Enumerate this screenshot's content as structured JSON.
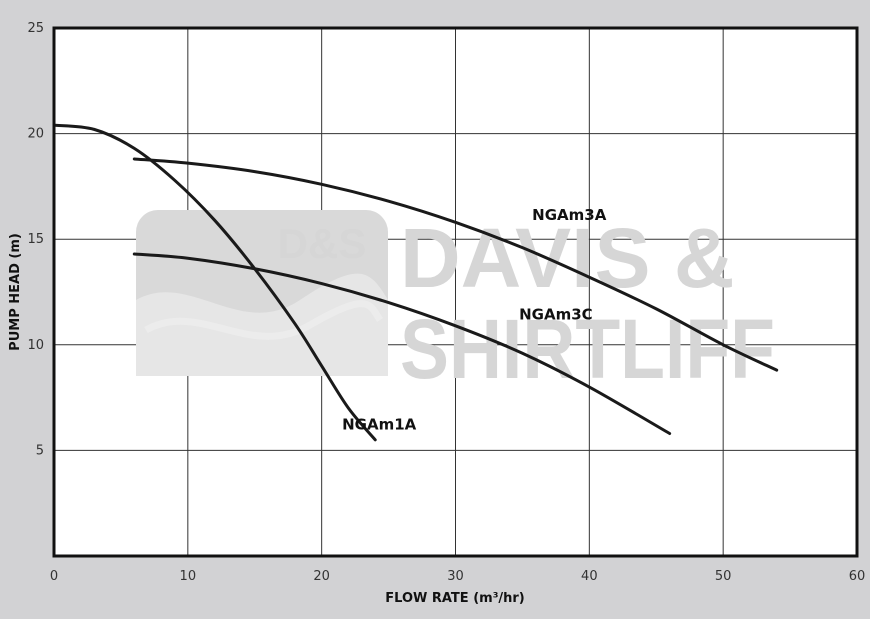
{
  "watermark": {
    "badge": "D&S",
    "line1": "DAVIS &",
    "line2": "SHIRTLIFF"
  },
  "colors": {
    "background": "#d2d2d4",
    "plot_area": "#ffffff",
    "curve": "#1a1a1a",
    "grid": "#333333",
    "watermark": "#d6d6d6"
  },
  "chart_data": {
    "type": "line",
    "title": "",
    "xlabel": "FLOW RATE (m³/hr)",
    "ylabel": "PUMP HEAD (m)",
    "xlim": [
      0,
      60
    ],
    "ylim": [
      0,
      25
    ],
    "xticks": [
      "0",
      "10",
      "20",
      "30",
      "40",
      "50",
      "60"
    ],
    "yticks": [
      "5",
      "10",
      "15",
      "20",
      "25"
    ],
    "grid": true,
    "legend": "inline labels",
    "series": [
      {
        "name": "NGAm1A",
        "x": [
          0,
          3,
          6,
          9,
          12,
          15,
          18,
          20,
          22,
          24
        ],
        "y": [
          20.4,
          20.2,
          19.3,
          17.8,
          15.9,
          13.6,
          11.0,
          9.0,
          7.0,
          5.5
        ]
      },
      {
        "name": "NGAm3A",
        "x": [
          6,
          10,
          15,
          20,
          25,
          30,
          35,
          40,
          45,
          50,
          54
        ],
        "y": [
          18.8,
          18.6,
          18.2,
          17.6,
          16.8,
          15.8,
          14.6,
          13.2,
          11.7,
          10.0,
          8.8
        ]
      },
      {
        "name": "NGAm3C",
        "x": [
          6,
          10,
          15,
          20,
          25,
          30,
          35,
          40,
          46
        ],
        "y": [
          14.3,
          14.1,
          13.6,
          12.9,
          12.0,
          10.9,
          9.6,
          8.0,
          5.8
        ]
      }
    ]
  }
}
